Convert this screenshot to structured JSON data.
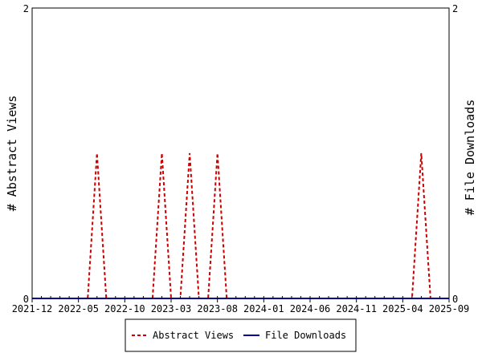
{
  "chart_data": {
    "type": "line",
    "x_tick_labels": [
      "2021-12",
      "2022-05",
      "2022-10",
      "2023-03",
      "2023-08",
      "2024-01",
      "2024-06",
      "2024-11",
      "2025-04",
      "2025-09"
    ],
    "x_range": [
      "2021-12",
      "2025-09"
    ],
    "y_left": {
      "label": "# Abstract Views",
      "range": [
        0,
        2
      ],
      "tick_labels": [
        "0",
        "2"
      ]
    },
    "y_right": {
      "label": "# File Downloads",
      "range": [
        0,
        2
      ],
      "tick_labels": [
        "0",
        "2"
      ]
    },
    "grid": false,
    "legend_position": "bottom-center",
    "series": [
      {
        "name": "Abstract Views",
        "axis": "left",
        "color": "#cc0000",
        "style": "dashed",
        "points": [
          [
            "2021-12",
            0
          ],
          [
            "2022-06",
            0
          ],
          [
            "2022-07",
            1
          ],
          [
            "2022-08",
            0
          ],
          [
            "2023-01",
            0
          ],
          [
            "2023-02",
            1
          ],
          [
            "2023-03",
            0
          ],
          [
            "2023-04",
            0
          ],
          [
            "2023-05",
            1
          ],
          [
            "2023-06",
            0
          ],
          [
            "2023-07",
            0
          ],
          [
            "2023-08",
            1
          ],
          [
            "2023-09",
            0
          ],
          [
            "2025-05",
            0
          ],
          [
            "2025-06",
            1
          ],
          [
            "2025-07",
            0
          ],
          [
            "2025-09",
            0
          ]
        ]
      },
      {
        "name": "File Downloads",
        "axis": "right",
        "color": "#000099",
        "style": "solid",
        "points": [
          [
            "2021-12",
            0
          ],
          [
            "2025-09",
            0
          ]
        ]
      }
    ]
  }
}
